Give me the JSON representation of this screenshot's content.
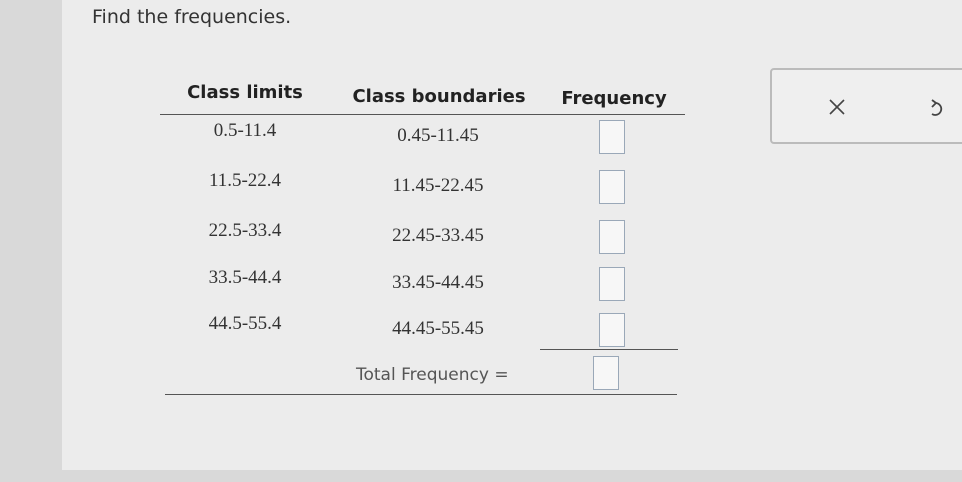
{
  "prompt": "Find the frequencies.",
  "table": {
    "headers": [
      "Class limits",
      "Class boundaries",
      "Frequency"
    ],
    "rows": [
      [
        "0.5-11.4",
        "0.45-11.45"
      ],
      [
        "11.5-22.4",
        "11.45-22.45"
      ],
      [
        "22.5-33.4",
        "22.45-33.45"
      ],
      [
        "33.5-44.4",
        "33.45-44.45"
      ],
      [
        "44.5-55.4",
        "44.45-55.45"
      ]
    ],
    "total_label": "Total Frequency ="
  }
}
